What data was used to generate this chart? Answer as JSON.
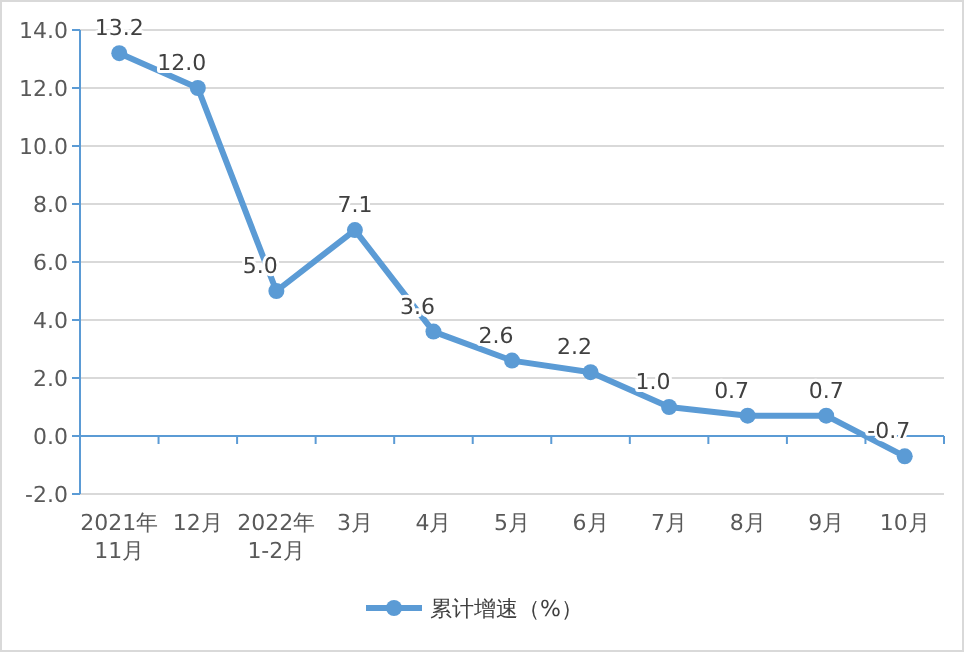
{
  "chart_data": {
    "type": "line",
    "categories": [
      "2021年\n11月",
      "12月",
      "2022年\n1-2月",
      "3月",
      "4月",
      "5月",
      "6月",
      "7月",
      "8月",
      "9月",
      "10月"
    ],
    "series": [
      {
        "name": "累计增速（%）",
        "color": "#5b9bd5",
        "values": [
          13.2,
          12.0,
          5.0,
          7.1,
          3.6,
          2.6,
          2.2,
          1.0,
          0.7,
          0.7,
          -0.7
        ],
        "value_labels": [
          "13.2",
          "12.0",
          "5.0",
          "7.1",
          "3.6",
          "2.6",
          "2.2",
          "1.0",
          "0.7",
          "0.7",
          "-0.7"
        ]
      }
    ],
    "ylim": [
      -2,
      14
    ],
    "yticks": [
      {
        "value": -2,
        "label": "-2.0"
      },
      {
        "value": 0,
        "label": "0.0"
      },
      {
        "value": 2,
        "label": "2.0"
      },
      {
        "value": 4,
        "label": "4.0"
      },
      {
        "value": 6,
        "label": "6.0"
      },
      {
        "value": 8,
        "label": "8.0"
      },
      {
        "value": 10,
        "label": "10.0"
      },
      {
        "value": 12,
        "label": "12.0"
      },
      {
        "value": 14,
        "label": "14.0"
      }
    ],
    "ref_lines": [
      {
        "axis": "y",
        "value": 0,
        "color": "#5b9bd5"
      }
    ],
    "grid": "y",
    "legend": "bottom",
    "marker": "circle",
    "line_style": "solid"
  }
}
